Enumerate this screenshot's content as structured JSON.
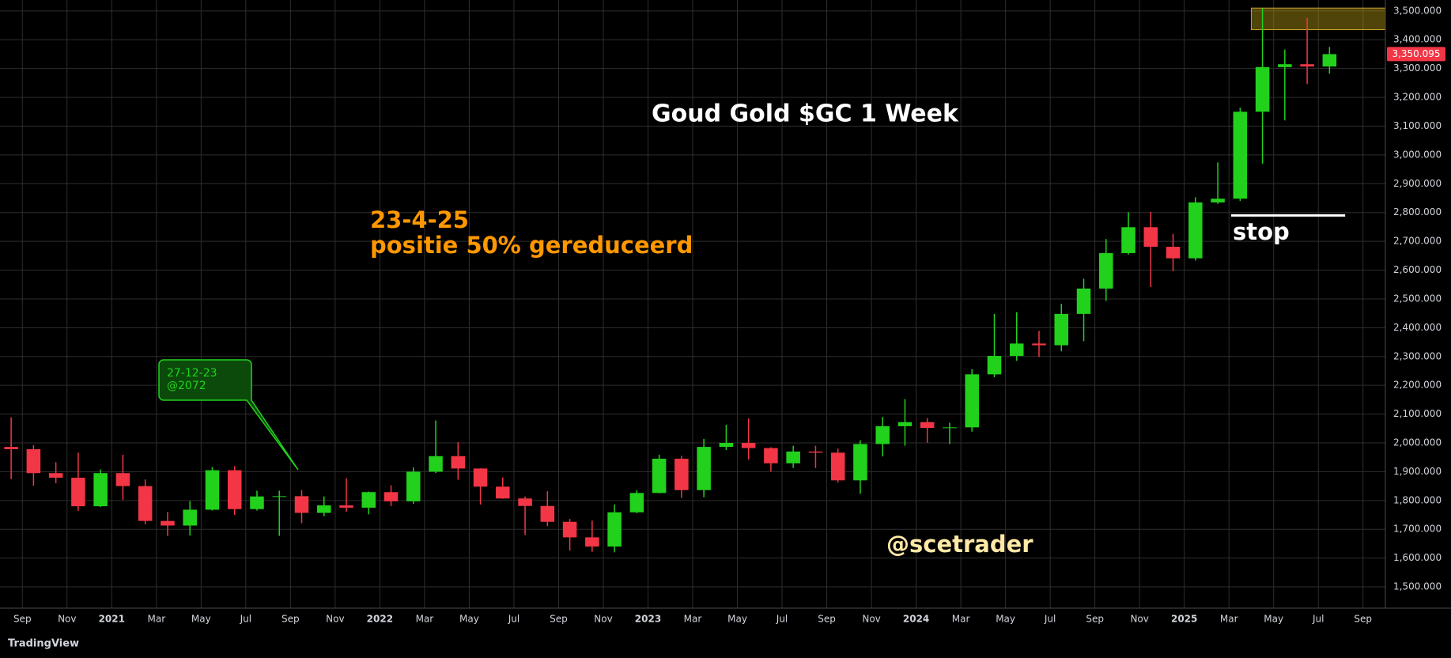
{
  "chart_data": {
    "type": "candlestick",
    "title": "Goud Gold $GC 1 Week",
    "x": [
      "2020-08",
      "2020-09",
      "2020-10",
      "2020-11",
      "2020-12",
      "2021-01",
      "2021-02",
      "2021-03",
      "2021-04",
      "2021-05",
      "2021-06",
      "2021-07",
      "2021-08",
      "2021-09",
      "2021-10",
      "2021-11",
      "2021-12",
      "2022-01",
      "2022-02",
      "2022-03",
      "2022-04",
      "2022-05",
      "2022-06",
      "2022-07",
      "2022-08",
      "2022-09",
      "2022-10",
      "2022-11",
      "2022-12",
      "2023-01",
      "2023-02",
      "2023-03",
      "2023-04",
      "2023-05",
      "2023-06",
      "2023-07",
      "2023-08",
      "2023-09",
      "2023-10",
      "2023-11",
      "2023-12",
      "2024-01",
      "2024-02",
      "2024-03",
      "2024-04",
      "2024-05",
      "2024-06",
      "2024-07",
      "2024-08",
      "2024-09",
      "2024-10",
      "2024-11",
      "2024-12",
      "2025-01",
      "2025-02",
      "2025-03",
      "2025-04",
      "2025-05",
      "2025-06",
      "2025-07"
    ],
    "open": [
      1986,
      1978,
      1895,
      1879,
      1780,
      1895,
      1850,
      1729,
      1713,
      1768,
      1905,
      1770,
      1814,
      1815,
      1757,
      1783,
      1775,
      1829,
      1797,
      1900,
      1954,
      1911,
      1848,
      1807,
      1781,
      1726,
      1672,
      1640,
      1759,
      1826,
      1945,
      1836,
      1986,
      2000,
      1982,
      1929,
      1970,
      1966,
      1870,
      1996,
      2058,
      2072,
      2052,
      2054,
      2238,
      2302,
      2345,
      2339,
      2448,
      2536,
      2659,
      2749,
      2681,
      2641,
      2835,
      2848,
      3150,
      3305,
      3315,
      3307
    ],
    "high": [
      2089,
      1992,
      1933,
      1966,
      1908,
      1959,
      1873,
      1760,
      1798,
      1916,
      1919,
      1834,
      1834,
      1836,
      1814,
      1877,
      1831,
      1853,
      1915,
      2078,
      2003,
      1912,
      1880,
      1814,
      1832,
      1736,
      1730,
      1786,
      1835,
      1959,
      1955,
      2014,
      2063,
      2085,
      1985,
      1990,
      1990,
      1980,
      2009,
      2090,
      2152,
      2086,
      2070,
      2256,
      2448,
      2454,
      2389,
      2483,
      2570,
      2708,
      2801,
      2802,
      2726,
      2853,
      2974,
      3164,
      3509,
      3366,
      3476,
      3375
    ],
    "low": [
      1874,
      1851,
      1860,
      1764,
      1777,
      1802,
      1717,
      1677,
      1678,
      1765,
      1750,
      1765,
      1677,
      1721,
      1745,
      1761,
      1752,
      1780,
      1788,
      1895,
      1872,
      1786,
      1806,
      1680,
      1711,
      1626,
      1622,
      1620,
      1756,
      1825,
      1809,
      1811,
      1975,
      1942,
      1900,
      1913,
      1913,
      1862,
      1823,
      1953,
      1990,
      2001,
      1996,
      2039,
      2228,
      2285,
      2298,
      2318,
      2353,
      2493,
      2654,
      2541,
      2596,
      2633,
      2830,
      2840,
      2970,
      3120,
      3246,
      3282
    ],
    "close": [
      1978,
      1895,
      1879,
      1780,
      1895,
      1850,
      1729,
      1713,
      1768,
      1905,
      1770,
      1814,
      1815,
      1757,
      1783,
      1775,
      1829,
      1797,
      1900,
      1954,
      1911,
      1848,
      1807,
      1781,
      1726,
      1672,
      1640,
      1759,
      1826,
      1945,
      1836,
      1986,
      2000,
      1982,
      1929,
      1970,
      1966,
      1870,
      1996,
      2058,
      2072,
      2052,
      2054,
      2238,
      2302,
      2345,
      2339,
      2448,
      2536,
      2659,
      2749,
      2681,
      2641,
      2835,
      2848,
      3150,
      3305,
      3315,
      3307,
      3350
    ],
    "up_color": "#22d11c",
    "down_color": "#f23645",
    "grid": true,
    "xlim": [
      "2020-08",
      "2025-10"
    ],
    "xticks": [
      {
        "value": "2020-09",
        "label": "Sep"
      },
      {
        "value": "2020-11",
        "label": "Nov"
      },
      {
        "value": "2021-01",
        "label": "2021"
      },
      {
        "value": "2021-03",
        "label": "Mar"
      },
      {
        "value": "2021-05",
        "label": "May"
      },
      {
        "value": "2021-07",
        "label": "Jul"
      },
      {
        "value": "2021-09",
        "label": "Sep"
      },
      {
        "value": "2021-11",
        "label": "Nov"
      },
      {
        "value": "2022-01",
        "label": "2022"
      },
      {
        "value": "2022-03",
        "label": "Mar"
      },
      {
        "value": "2022-05",
        "label": "May"
      },
      {
        "value": "2022-07",
        "label": "Jul"
      },
      {
        "value": "2022-09",
        "label": "Sep"
      },
      {
        "value": "2022-11",
        "label": "Nov"
      },
      {
        "value": "2023-01",
        "label": "2023"
      },
      {
        "value": "2023-03",
        "label": "Mar"
      },
      {
        "value": "2023-05",
        "label": "May"
      },
      {
        "value": "2023-07",
        "label": "Jul"
      },
      {
        "value": "2023-09",
        "label": "Sep"
      },
      {
        "value": "2023-11",
        "label": "Nov"
      },
      {
        "value": "2024-01",
        "label": "2024"
      },
      {
        "value": "2024-03",
        "label": "Mar"
      },
      {
        "value": "2024-05",
        "label": "May"
      },
      {
        "value": "2024-07",
        "label": "Jul"
      },
      {
        "value": "2024-09",
        "label": "Sep"
      },
      {
        "value": "2024-11",
        "label": "Nov"
      },
      {
        "value": "2025-01",
        "label": "2025"
      },
      {
        "value": "2025-03",
        "label": "Mar"
      },
      {
        "value": "2025-05",
        "label": "May"
      },
      {
        "value": "2025-07",
        "label": "Jul"
      },
      {
        "value": "2025-09",
        "label": "Sep"
      }
    ],
    "ylim": [
      1426,
      3538
    ],
    "yticks": [
      {
        "value": 1500,
        "label": "1,500.000"
      },
      {
        "value": 1600,
        "label": "1,600.000"
      },
      {
        "value": 1700,
        "label": "1,700.000"
      },
      {
        "value": 1800,
        "label": "1,800.000"
      },
      {
        "value": 1900,
        "label": "1,900.000"
      },
      {
        "value": 2000,
        "label": "2,000.000"
      },
      {
        "value": 2100,
        "label": "2,100.000"
      },
      {
        "value": 2200,
        "label": "2,200.000"
      },
      {
        "value": 2300,
        "label": "2,300.000"
      },
      {
        "value": 2400,
        "label": "2,400.000"
      },
      {
        "value": 2500,
        "label": "2,500.000"
      },
      {
        "value": 2600,
        "label": "2,600.000"
      },
      {
        "value": 2700,
        "label": "2,700.000"
      },
      {
        "value": 2800,
        "label": "2,800.000"
      },
      {
        "value": 2900,
        "label": "2,900.000"
      },
      {
        "value": 3000,
        "label": "3,000.000"
      },
      {
        "value": 3100,
        "label": "3,100.000"
      },
      {
        "value": 3200,
        "label": "3,200.000"
      },
      {
        "value": 3300,
        "label": "3,300.000"
      },
      {
        "value": 3400,
        "label": "3,400.000"
      },
      {
        "value": 3500,
        "label": "3,500.000"
      }
    ],
    "last_price": {
      "value": 3350.095,
      "label": "3,350.095"
    },
    "zone": [
      3435,
      3510
    ],
    "stop_level": 2790,
    "annotations": {
      "date": "23-4-25",
      "text": "positie 50% gereduceerd",
      "stop": "stop",
      "author": "@scetrader",
      "callout_date": "27-12-23",
      "callout_price": "@2072"
    },
    "source": "TradingView"
  }
}
